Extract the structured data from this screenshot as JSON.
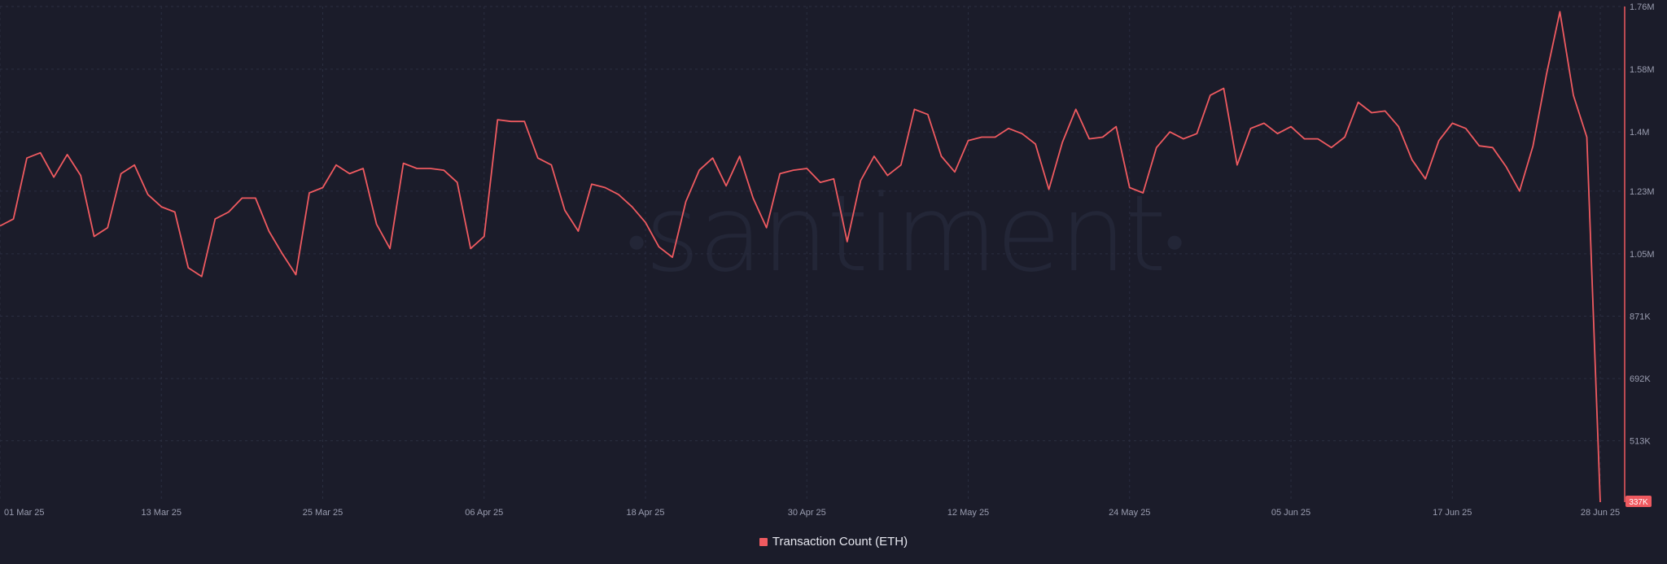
{
  "watermark": "santiment",
  "colors": {
    "background": "#1b1c2a",
    "line": "#ef5a60",
    "grid": "#2b2e40",
    "axis_text": "#9a9db0",
    "last_value_badge": "#ef5a60"
  },
  "legend": {
    "label": "Transaction Count (ETH)"
  },
  "chart_data": {
    "type": "line",
    "title": "",
    "xlabel": "",
    "ylabel": "",
    "x_ticks": [
      "01 Mar 25",
      "13 Mar 25",
      "25 Mar 25",
      "06 Apr 25",
      "18 Apr 25",
      "30 Apr 25",
      "12 May 25",
      "24 May 25",
      "05 Jun 25",
      "17 Jun 25",
      "28 Jun 25"
    ],
    "y_ticks": [
      "1.76M",
      "1.58M",
      "1.4M",
      "1.23M",
      "1.05M",
      "871K",
      "692K",
      "513K"
    ],
    "y_tick_values": [
      1760000,
      1580000,
      1400000,
      1230000,
      1050000,
      871000,
      692000,
      513000
    ],
    "ylim": [
      337000,
      1760000
    ],
    "y_axis_position": "right",
    "grid": true,
    "legend_position": "bottom-center",
    "last_value_label": "337K",
    "series": [
      {
        "name": "Transaction Count (ETH)",
        "x_start": "2025-03-01",
        "x_step_days": 1,
        "values": [
          1130000,
          1150000,
          1325000,
          1340000,
          1270000,
          1335000,
          1275000,
          1100000,
          1125000,
          1280000,
          1305000,
          1220000,
          1185000,
          1170000,
          1010000,
          985000,
          1150000,
          1170000,
          1210000,
          1210000,
          1115000,
          1050000,
          990000,
          1225000,
          1240000,
          1305000,
          1280000,
          1295000,
          1135000,
          1065000,
          1310000,
          1295000,
          1295000,
          1290000,
          1255000,
          1065000,
          1100000,
          1435000,
          1430000,
          1430000,
          1325000,
          1305000,
          1175000,
          1115000,
          1250000,
          1240000,
          1220000,
          1185000,
          1140000,
          1070000,
          1040000,
          1200000,
          1290000,
          1325000,
          1245000,
          1330000,
          1210000,
          1125000,
          1280000,
          1290000,
          1295000,
          1255000,
          1265000,
          1085000,
          1260000,
          1330000,
          1275000,
          1305000,
          1465000,
          1450000,
          1330000,
          1285000,
          1375000,
          1385000,
          1385000,
          1410000,
          1395000,
          1365000,
          1235000,
          1370000,
          1465000,
          1380000,
          1385000,
          1415000,
          1240000,
          1225000,
          1355000,
          1400000,
          1380000,
          1395000,
          1505000,
          1525000,
          1305000,
          1410000,
          1425000,
          1395000,
          1415000,
          1380000,
          1380000,
          1355000,
          1385000,
          1485000,
          1455000,
          1460000,
          1415000,
          1320000,
          1265000,
          1375000,
          1425000,
          1410000,
          1360000,
          1355000,
          1300000,
          1230000,
          1360000,
          1565000,
          1745000,
          1505000,
          1385000,
          337000
        ]
      }
    ]
  }
}
